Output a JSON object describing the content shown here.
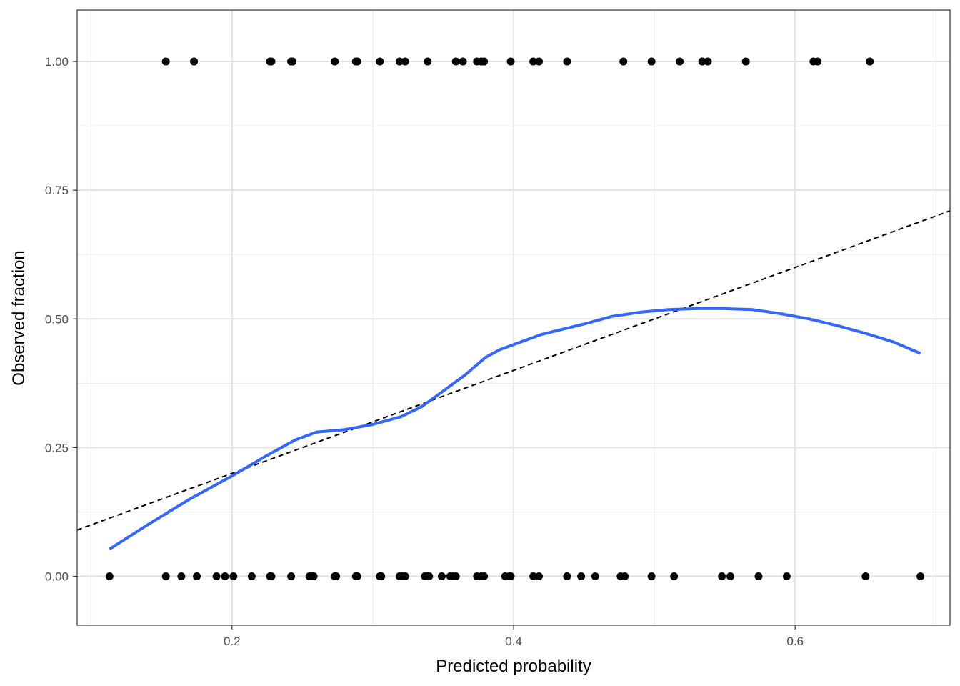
{
  "chart_data": {
    "type": "scatter",
    "title": "",
    "xlabel": "Predicted probability",
    "ylabel": "Observed fraction",
    "xlim": [
      0.09,
      0.71
    ],
    "ylim": [
      -0.095,
      1.1
    ],
    "x_major_ticks": [
      0.2,
      0.4,
      0.6
    ],
    "x_minor_ticks": [
      0.1,
      0.3,
      0.5,
      0.7
    ],
    "y_major_ticks": [
      0.0,
      0.25,
      0.5,
      0.75,
      1.0
    ],
    "y_minor_ticks": [
      0.125,
      0.375,
      0.625,
      0.875
    ],
    "x_tick_labels": [
      "0.2",
      "0.4",
      "0.6"
    ],
    "y_tick_labels": [
      "0.00",
      "0.25",
      "0.50",
      "0.75",
      "1.00"
    ],
    "grid": true,
    "theme": "bw",
    "series": [
      {
        "kind": "points",
        "color": "#000000",
        "points": [
          [
            0.153,
            1
          ],
          [
            0.173,
            1
          ],
          [
            0.227,
            1
          ],
          [
            0.228,
            1
          ],
          [
            0.242,
            1
          ],
          [
            0.243,
            1
          ],
          [
            0.273,
            1
          ],
          [
            0.288,
            1
          ],
          [
            0.289,
            1
          ],
          [
            0.305,
            1
          ],
          [
            0.319,
            1
          ],
          [
            0.323,
            1
          ],
          [
            0.339,
            1
          ],
          [
            0.359,
            1
          ],
          [
            0.364,
            1
          ],
          [
            0.374,
            1
          ],
          [
            0.377,
            1
          ],
          [
            0.379,
            1
          ],
          [
            0.398,
            1
          ],
          [
            0.414,
            1
          ],
          [
            0.418,
            1
          ],
          [
            0.438,
            1
          ],
          [
            0.478,
            1
          ],
          [
            0.498,
            1
          ],
          [
            0.518,
            1
          ],
          [
            0.534,
            1
          ],
          [
            0.538,
            1
          ],
          [
            0.565,
            1
          ],
          [
            0.613,
            1
          ],
          [
            0.616,
            1
          ],
          [
            0.653,
            1
          ],
          [
            0.113,
            0
          ],
          [
            0.153,
            0
          ],
          [
            0.164,
            0
          ],
          [
            0.175,
            0
          ],
          [
            0.189,
            0
          ],
          [
            0.195,
            0
          ],
          [
            0.201,
            0
          ],
          [
            0.214,
            0
          ],
          [
            0.227,
            0
          ],
          [
            0.228,
            0
          ],
          [
            0.242,
            0
          ],
          [
            0.255,
            0
          ],
          [
            0.257,
            0
          ],
          [
            0.258,
            0
          ],
          [
            0.273,
            0
          ],
          [
            0.274,
            0
          ],
          [
            0.288,
            0
          ],
          [
            0.289,
            0
          ],
          [
            0.305,
            0
          ],
          [
            0.306,
            0
          ],
          [
            0.319,
            0
          ],
          [
            0.321,
            0
          ],
          [
            0.323,
            0
          ],
          [
            0.337,
            0
          ],
          [
            0.339,
            0
          ],
          [
            0.34,
            0
          ],
          [
            0.349,
            0
          ],
          [
            0.355,
            0
          ],
          [
            0.357,
            0
          ],
          [
            0.359,
            0
          ],
          [
            0.374,
            0
          ],
          [
            0.377,
            0
          ],
          [
            0.379,
            0
          ],
          [
            0.394,
            0
          ],
          [
            0.397,
            0
          ],
          [
            0.398,
            0
          ],
          [
            0.414,
            0
          ],
          [
            0.418,
            0
          ],
          [
            0.438,
            0
          ],
          [
            0.448,
            0
          ],
          [
            0.458,
            0
          ],
          [
            0.476,
            0
          ],
          [
            0.479,
            0
          ],
          [
            0.498,
            0
          ],
          [
            0.514,
            0
          ],
          [
            0.548,
            0
          ],
          [
            0.554,
            0
          ],
          [
            0.574,
            0
          ],
          [
            0.594,
            0
          ],
          [
            0.65,
            0
          ],
          [
            0.689,
            0
          ]
        ]
      },
      {
        "kind": "smooth-line",
        "color": "#3366FF",
        "points": [
          [
            0.113,
            0.053
          ],
          [
            0.14,
            0.1
          ],
          [
            0.17,
            0.15
          ],
          [
            0.2,
            0.195
          ],
          [
            0.225,
            0.235
          ],
          [
            0.245,
            0.265
          ],
          [
            0.26,
            0.28
          ],
          [
            0.28,
            0.285
          ],
          [
            0.3,
            0.295
          ],
          [
            0.32,
            0.31
          ],
          [
            0.335,
            0.33
          ],
          [
            0.35,
            0.36
          ],
          [
            0.365,
            0.39
          ],
          [
            0.38,
            0.425
          ],
          [
            0.39,
            0.44
          ],
          [
            0.4,
            0.45
          ],
          [
            0.42,
            0.47
          ],
          [
            0.435,
            0.48
          ],
          [
            0.45,
            0.49
          ],
          [
            0.47,
            0.505
          ],
          [
            0.49,
            0.513
          ],
          [
            0.51,
            0.518
          ],
          [
            0.53,
            0.52
          ],
          [
            0.55,
            0.52
          ],
          [
            0.57,
            0.518
          ],
          [
            0.59,
            0.51
          ],
          [
            0.61,
            0.5
          ],
          [
            0.63,
            0.487
          ],
          [
            0.65,
            0.472
          ],
          [
            0.67,
            0.455
          ],
          [
            0.689,
            0.433
          ]
        ]
      },
      {
        "kind": "reference-line",
        "style": "dashed",
        "color": "#000000",
        "slope": 1,
        "intercept": 0
      }
    ]
  }
}
